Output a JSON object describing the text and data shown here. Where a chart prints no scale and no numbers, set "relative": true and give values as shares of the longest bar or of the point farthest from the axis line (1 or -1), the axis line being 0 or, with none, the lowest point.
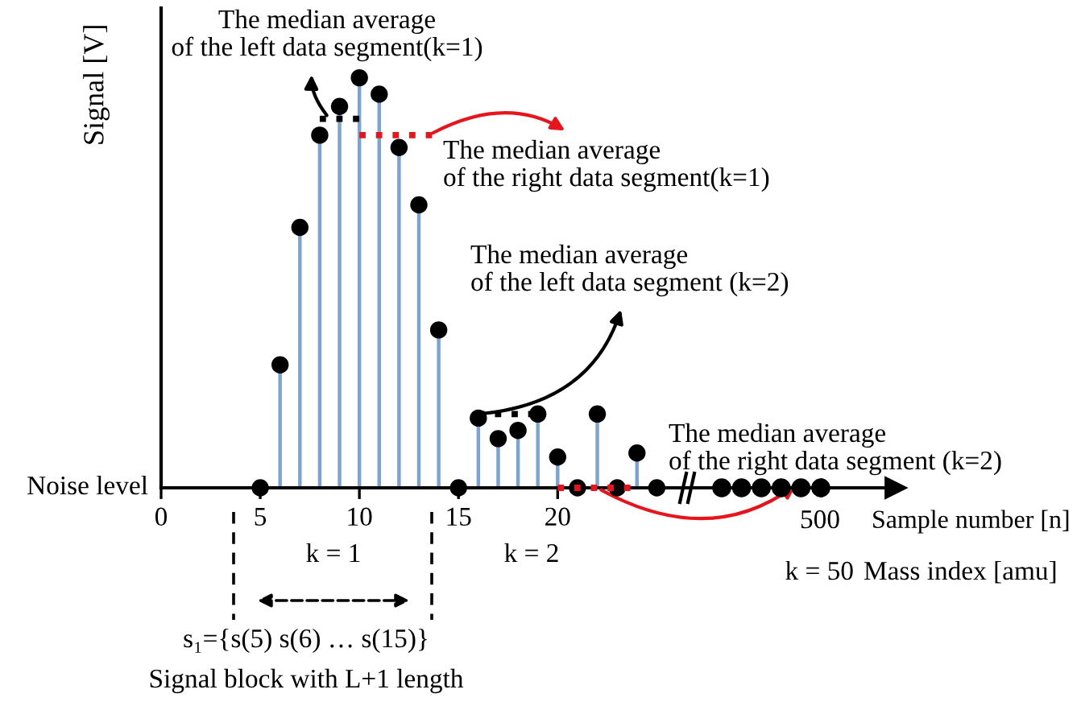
{
  "chart_data": [
    {
      "type": "lollipop",
      "relative": true,
      "ylabel": "Signal [V]",
      "xlim": [
        0,
        26
      ],
      "xticks": [
        0,
        5,
        10,
        15,
        20
      ],
      "tick_labels": "x",
      "marker": "circle",
      "x": [
        5,
        6,
        7,
        8,
        9,
        10,
        11,
        12,
        13,
        14,
        15,
        16,
        17,
        18,
        19,
        20,
        21,
        22,
        23,
        24,
        25
      ],
      "series": [
        {
          "color": "#000000",
          "values": [
            0,
            0.3,
            0.635,
            0.86,
            0.93,
            1,
            0.96,
            0.83,
            0.69,
            0.385,
            0,
            0.17,
            0.12,
            0.14,
            0.18,
            0.075,
            0,
            0.18,
            0,
            0.085,
            0
          ]
        },
        {
          "type": "line",
          "line_style": "dotted",
          "marker": "none",
          "color": "#000000",
          "x": [
            8,
            10
          ],
          "values": [
            0.9,
            0.9
          ]
        },
        {
          "type": "line",
          "line_style": "dotted",
          "marker": "none",
          "color": "#e8141c",
          "x": [
            10,
            14
          ],
          "values": [
            0.86,
            0.86
          ]
        },
        {
          "type": "line",
          "line_style": "dotted",
          "marker": "none",
          "color": "#000000",
          "x": [
            16,
            19
          ],
          "values": [
            0.18,
            0.18
          ]
        },
        {
          "type": "line",
          "line_style": "dotted",
          "marker": "none",
          "color": "#e8141c",
          "x": [
            20,
            24
          ],
          "values": [
            0,
            0
          ]
        }
      ],
      "annotations": [
        {
          "text": "The median average\nof the left data segment(k=1)",
          "x": 8.5,
          "y": 0.9
        },
        {
          "text": "The median average\nof the right data segment(k=1)",
          "x": 13.5,
          "y": 0.86
        },
        {
          "text": "The median average\nof the left data segment (k=2)",
          "x": 16,
          "y": 0.18
        },
        {
          "text": "The median average\nof the right data segment (k=2)",
          "x": 22,
          "y": 0
        },
        "Noise level",
        "k = 1",
        "k = 2",
        "s₁={s(5) s(6) … s(15)}",
        "Signal block with L+1 length"
      ]
    },
    {
      "type": "other",
      "xlabel": "Sample number [n]",
      "annotations": [
        "500",
        "k = 50",
        "Mass index [amu]"
      ]
    }
  ]
}
